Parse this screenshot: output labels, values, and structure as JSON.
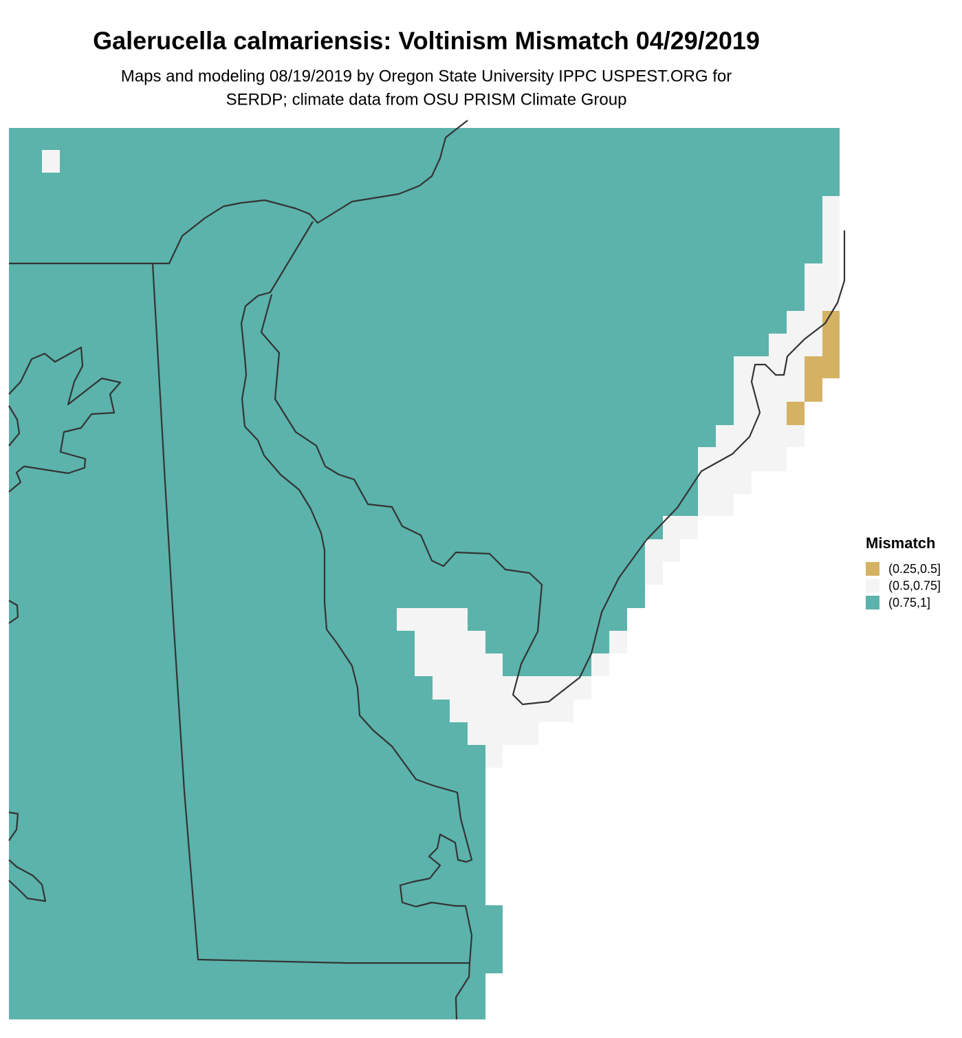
{
  "title": "Galerucella calmariensis: Voltinism Mismatch 04/29/2019",
  "subtitle": [
    "Maps and modeling 08/19/2019 by Oregon State University IPPC USPEST.ORG for",
    "SERDP; climate data from OSU PRISM Climate Group"
  ],
  "legend": {
    "title": "Mismatch",
    "items": [
      {
        "label": "(0.25,0.5]",
        "color": "#d5b263"
      },
      {
        "label": "(0.5,0.75]",
        "color": "#f4f4f4"
      },
      {
        "label": "(0.75,1]",
        "color": "#5bb3ab"
      }
    ]
  }
}
